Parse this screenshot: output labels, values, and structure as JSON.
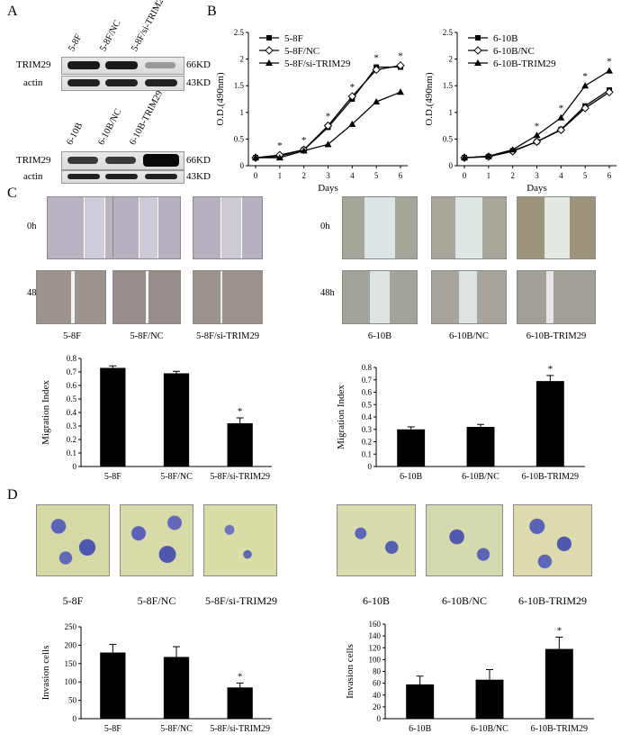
{
  "panel_a": {
    "letter": "A",
    "blot1": {
      "cols": [
        "5-8F",
        "5-8F/NC",
        "5-8F/si-TRIM29"
      ],
      "rows": [
        "TRIM29",
        "actin"
      ],
      "sizes": [
        "66KD",
        "43KD"
      ],
      "trim29_levels": [
        0.9,
        0.9,
        0.2
      ]
    },
    "blot2": {
      "cols": [
        "6-10B",
        "6-10B/NC",
        "6-10B-TRIM29"
      ],
      "rows": [
        "TRIM29",
        "actin"
      ],
      "sizes": [
        "66KD",
        "43KD"
      ],
      "trim29_levels": [
        0.6,
        0.6,
        1.0
      ]
    }
  },
  "panel_b": {
    "letter": "B"
  },
  "panel_c": {
    "letter": "C",
    "times": [
      "0h",
      "48h"
    ],
    "left_captions": [
      "5-8F",
      "5-8F/NC",
      "5-8F/si-TRIM29"
    ],
    "right_captions": [
      "6-10B",
      "6-10B/NC",
      "6-10B-TRIM29"
    ]
  },
  "panel_d": {
    "letter": "D",
    "left_captions": [
      "5-8F",
      "5-8F/NC",
      "5-8F/si-TRIM29"
    ],
    "right_captions": [
      "6-10B",
      "6-10B/NC",
      "6-10B-TRIM29"
    ]
  },
  "chart_data": [
    {
      "id": "growth-5-8F",
      "type": "line",
      "x": [
        0,
        1,
        2,
        3,
        4,
        5,
        6
      ],
      "xlabel": "Days",
      "ylabel": "O.D.(490nm)",
      "ylim": [
        0,
        2.5
      ],
      "yticks": [
        "0",
        "0.5",
        "1",
        "1.5",
        "2",
        "2.5"
      ],
      "legend_position": "top-left",
      "series": [
        {
          "name": "5-8F",
          "marker": "square",
          "values": [
            0.15,
            0.18,
            0.3,
            0.72,
            1.25,
            1.85,
            1.85
          ]
        },
        {
          "name": "5-8F/NC",
          "marker": "diamond-open",
          "values": [
            0.15,
            0.2,
            0.3,
            0.75,
            1.3,
            1.8,
            1.88
          ]
        },
        {
          "name": "5-8F/si-TRIM29",
          "marker": "triangle",
          "values": [
            0.15,
            0.15,
            0.28,
            0.4,
            0.78,
            1.2,
            1.38
          ]
        }
      ],
      "annotations": [
        {
          "x": 1,
          "label": "*"
        },
        {
          "x": 2,
          "label": "*"
        },
        {
          "x": 3,
          "label": "*"
        },
        {
          "x": 4,
          "label": "*"
        },
        {
          "x": 5,
          "label": "*"
        },
        {
          "x": 6,
          "label": "*"
        }
      ]
    },
    {
      "id": "growth-6-10B",
      "type": "line",
      "x": [
        0,
        1,
        2,
        3,
        4,
        5,
        6
      ],
      "xlabel": "Days",
      "ylabel": "O.D.(490nm)",
      "ylim": [
        0,
        2.5
      ],
      "yticks": [
        "0",
        "0.5",
        "1",
        "1.5",
        "2",
        "2.5"
      ],
      "legend_position": "top-left",
      "series": [
        {
          "name": "6-10B",
          "marker": "square",
          "values": [
            0.15,
            0.17,
            0.28,
            0.45,
            0.68,
            1.12,
            1.42
          ]
        },
        {
          "name": "6-10B/NC",
          "marker": "diamond-open",
          "values": [
            0.15,
            0.17,
            0.27,
            0.45,
            0.67,
            1.08,
            1.38
          ]
        },
        {
          "name": "6-10B-TRIM29",
          "marker": "triangle",
          "values": [
            0.15,
            0.18,
            0.3,
            0.57,
            0.9,
            1.5,
            1.78
          ]
        }
      ],
      "annotations": [
        {
          "x": 3,
          "label": "*"
        },
        {
          "x": 4,
          "label": "*"
        },
        {
          "x": 5,
          "label": "*"
        },
        {
          "x": 6,
          "label": "*"
        }
      ]
    },
    {
      "id": "migration-5-8F",
      "type": "bar",
      "categories": [
        "5-8F",
        "5-8F/NC",
        "5-8F/si-TRIM29"
      ],
      "values": [
        0.73,
        0.69,
        0.32
      ],
      "errors": [
        0.015,
        0.015,
        0.04
      ],
      "ylabel": "Migration Index",
      "ylim": [
        0,
        0.8
      ],
      "yticks": [
        "0",
        "0.1",
        "0.2",
        "0.3",
        "0.4",
        "0.5",
        "0.6",
        "0.7",
        "0.8"
      ],
      "annotations": [
        {
          "index": 2,
          "label": "*"
        }
      ]
    },
    {
      "id": "migration-6-10B",
      "type": "bar",
      "categories": [
        "6-10B",
        "6-10B/NC",
        "6-10B-TRIM29"
      ],
      "values": [
        0.3,
        0.32,
        0.69
      ],
      "errors": [
        0.02,
        0.02,
        0.045
      ],
      "ylabel": "Migration Index",
      "ylim": [
        0,
        0.8
      ],
      "yticks": [
        "0",
        "0.1",
        "0.2",
        "0.3",
        "0.4",
        "0.5",
        "0.6",
        "0.7",
        "0.8"
      ],
      "annotations": [
        {
          "index": 2,
          "label": "*"
        }
      ]
    },
    {
      "id": "invasion-5-8F",
      "type": "bar",
      "categories": [
        "5-8F",
        "5-8F/NC",
        "5-8F/si-TRIM29"
      ],
      "values": [
        180,
        168,
        85
      ],
      "errors": [
        22,
        28,
        12
      ],
      "ylabel": "Invasion cells",
      "ylim": [
        0,
        250
      ],
      "yticks": [
        "0",
        "50",
        "100",
        "150",
        "200",
        "250"
      ],
      "annotations": [
        {
          "index": 2,
          "label": "*"
        }
      ]
    },
    {
      "id": "invasion-6-10B",
      "type": "bar",
      "categories": [
        "6-10B",
        "6-10B/NC",
        "6-10B-TRIM29"
      ],
      "values": [
        58,
        66,
        118
      ],
      "errors": [
        14,
        17,
        20
      ],
      "ylabel": "Invasion cells",
      "ylim": [
        0,
        160
      ],
      "yticks": [
        "0",
        "20",
        "40",
        "60",
        "80",
        "100",
        "120",
        "140",
        "160"
      ],
      "annotations": [
        {
          "index": 2,
          "label": "*"
        }
      ]
    }
  ]
}
